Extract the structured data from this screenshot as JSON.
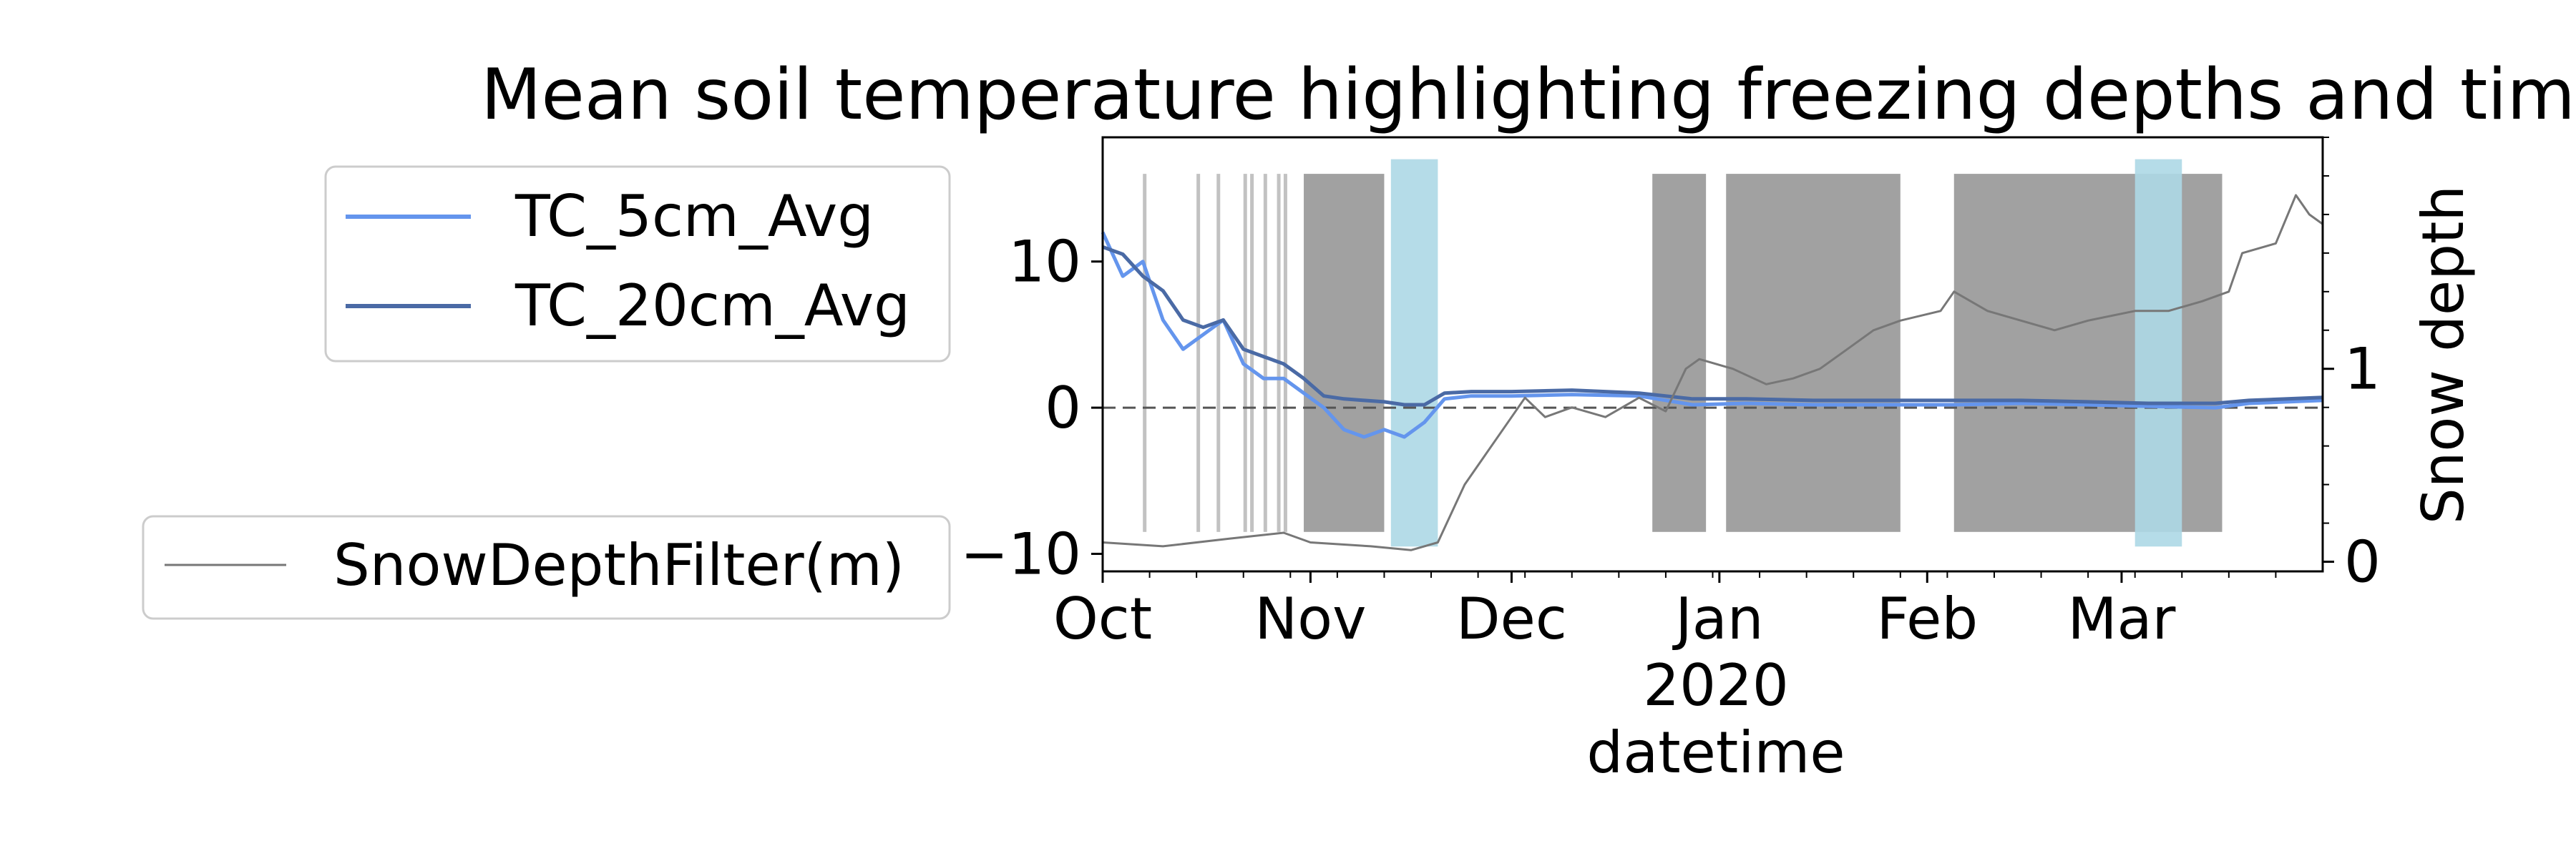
{
  "chart_data": {
    "type": "line",
    "title": "Mean soil temperature highlighting freezing depths and tim",
    "xlabel": "datetime",
    "ylabel_right": "Snow depth",
    "ylabel_left": "",
    "x_range": [
      "2019-10-01",
      "2020-03-31"
    ],
    "x_ticks": [
      {
        "date": "2019-10-01",
        "label": "Oct"
      },
      {
        "date": "2019-11-01",
        "label": "Nov"
      },
      {
        "date": "2019-12-01",
        "label": "Dec"
      },
      {
        "date": "2020-01-01",
        "label": "Jan"
      },
      {
        "date": "2020-02-01",
        "label": "Feb"
      },
      {
        "date": "2020-03-01",
        "label": "Mar"
      }
    ],
    "x_year_label": "2020",
    "y_left": {
      "lim": [
        -11.2,
        18.5
      ],
      "ticks": [
        -10,
        0,
        10
      ],
      "tick_labels": [
        "−10",
        "0",
        "10"
      ]
    },
    "y_right": {
      "lim": [
        -0.05,
        2.2
      ],
      "ticks": [
        0,
        1
      ],
      "tick_labels": [
        "0",
        "1"
      ]
    },
    "zero_line": {
      "value": 0,
      "style": "dashed"
    },
    "freeze_bands": {
      "color": "#999999",
      "y_range": [
        -8.5,
        16
      ],
      "dense_periods": [
        [
          "2019-10-31",
          "2019-11-12"
        ],
        [
          "2019-12-22",
          "2019-12-30"
        ],
        [
          "2020-01-02",
          "2020-01-28"
        ],
        [
          "2020-02-05",
          "2020-03-16"
        ]
      ],
      "sparse_dates": [
        "2019-10-07",
        "2019-10-15",
        "2019-10-18",
        "2019-10-22",
        "2019-10-23",
        "2019-10-25",
        "2019-10-27",
        "2019-10-28"
      ]
    },
    "thaw_bands": {
      "color": "#add8e6",
      "y_range": [
        -9.5,
        17
      ],
      "periods": [
        [
          "2019-11-13",
          "2019-11-20"
        ],
        [
          "2020-03-03",
          "2020-03-10"
        ]
      ]
    },
    "series": [
      {
        "name": "TC_5cm_Avg",
        "axis": "left",
        "color": "#6495ed",
        "points": [
          [
            "2019-10-01",
            12
          ],
          [
            "2019-10-04",
            9
          ],
          [
            "2019-10-07",
            10
          ],
          [
            "2019-10-10",
            6
          ],
          [
            "2019-10-13",
            4
          ],
          [
            "2019-10-16",
            5
          ],
          [
            "2019-10-19",
            6
          ],
          [
            "2019-10-22",
            3
          ],
          [
            "2019-10-25",
            2
          ],
          [
            "2019-10-28",
            2
          ],
          [
            "2019-10-31",
            1
          ],
          [
            "2019-11-03",
            0
          ],
          [
            "2019-11-06",
            -1.5
          ],
          [
            "2019-11-09",
            -2
          ],
          [
            "2019-11-12",
            -1.5
          ],
          [
            "2019-11-15",
            -2
          ],
          [
            "2019-11-18",
            -1
          ],
          [
            "2019-11-21",
            0.6
          ],
          [
            "2019-11-25",
            0.8
          ],
          [
            "2019-12-01",
            0.8
          ],
          [
            "2019-12-10",
            0.9
          ],
          [
            "2019-12-20",
            0.8
          ],
          [
            "2019-12-28",
            0.2
          ],
          [
            "2020-01-05",
            0.3
          ],
          [
            "2020-01-15",
            0.2
          ],
          [
            "2020-01-25",
            0.2
          ],
          [
            "2020-02-05",
            0.2
          ],
          [
            "2020-02-15",
            0.3
          ],
          [
            "2020-02-25",
            0.2
          ],
          [
            "2020-03-05",
            0.1
          ],
          [
            "2020-03-15",
            0.0
          ],
          [
            "2020-03-20",
            0.3
          ],
          [
            "2020-03-31",
            0.5
          ]
        ]
      },
      {
        "name": "TC_20cm_Avg",
        "axis": "left",
        "color": "#4a6aa5",
        "points": [
          [
            "2019-10-01",
            11
          ],
          [
            "2019-10-04",
            10.5
          ],
          [
            "2019-10-07",
            9
          ],
          [
            "2019-10-10",
            8
          ],
          [
            "2019-10-13",
            6
          ],
          [
            "2019-10-16",
            5.5
          ],
          [
            "2019-10-19",
            6
          ],
          [
            "2019-10-22",
            4
          ],
          [
            "2019-10-25",
            3.5
          ],
          [
            "2019-10-28",
            3
          ],
          [
            "2019-10-31",
            2
          ],
          [
            "2019-11-03",
            0.8
          ],
          [
            "2019-11-06",
            0.6
          ],
          [
            "2019-11-09",
            0.5
          ],
          [
            "2019-11-12",
            0.4
          ],
          [
            "2019-11-15",
            0.2
          ],
          [
            "2019-11-18",
            0.2
          ],
          [
            "2019-11-21",
            1.0
          ],
          [
            "2019-11-25",
            1.1
          ],
          [
            "2019-12-01",
            1.1
          ],
          [
            "2019-12-10",
            1.2
          ],
          [
            "2019-12-20",
            1.0
          ],
          [
            "2019-12-28",
            0.6
          ],
          [
            "2020-01-05",
            0.6
          ],
          [
            "2020-01-15",
            0.5
          ],
          [
            "2020-01-25",
            0.5
          ],
          [
            "2020-02-05",
            0.5
          ],
          [
            "2020-02-15",
            0.5
          ],
          [
            "2020-02-25",
            0.4
          ],
          [
            "2020-03-05",
            0.3
          ],
          [
            "2020-03-15",
            0.3
          ],
          [
            "2020-03-20",
            0.5
          ],
          [
            "2020-03-31",
            0.7
          ]
        ]
      },
      {
        "name": "SnowDepthFilter(m)",
        "axis": "right",
        "color": "#777777",
        "points": [
          [
            "2019-10-01",
            0.1
          ],
          [
            "2019-10-10",
            0.08
          ],
          [
            "2019-10-20",
            0.12
          ],
          [
            "2019-10-28",
            0.15
          ],
          [
            "2019-11-01",
            0.1
          ],
          [
            "2019-11-10",
            0.08
          ],
          [
            "2019-11-16",
            0.06
          ],
          [
            "2019-11-20",
            0.1
          ],
          [
            "2019-11-22",
            0.25
          ],
          [
            "2019-11-24",
            0.4
          ],
          [
            "2019-11-27",
            0.55
          ],
          [
            "2019-11-30",
            0.7
          ],
          [
            "2019-12-03",
            0.85
          ],
          [
            "2019-12-06",
            0.75
          ],
          [
            "2019-12-10",
            0.8
          ],
          [
            "2019-12-15",
            0.75
          ],
          [
            "2019-12-20",
            0.85
          ],
          [
            "2019-12-24",
            0.78
          ],
          [
            "2019-12-27",
            1.0
          ],
          [
            "2019-12-29",
            1.05
          ],
          [
            "2020-01-03",
            1.0
          ],
          [
            "2020-01-08",
            0.92
          ],
          [
            "2020-01-12",
            0.95
          ],
          [
            "2020-01-16",
            1.0
          ],
          [
            "2020-01-20",
            1.1
          ],
          [
            "2020-01-24",
            1.2
          ],
          [
            "2020-01-28",
            1.25
          ],
          [
            "2020-02-03",
            1.3
          ],
          [
            "2020-02-05",
            1.4
          ],
          [
            "2020-02-10",
            1.3
          ],
          [
            "2020-02-15",
            1.25
          ],
          [
            "2020-02-20",
            1.2
          ],
          [
            "2020-02-25",
            1.25
          ],
          [
            "2020-03-03",
            1.3
          ],
          [
            "2020-03-08",
            1.3
          ],
          [
            "2020-03-13",
            1.35
          ],
          [
            "2020-03-17",
            1.4
          ],
          [
            "2020-03-19",
            1.6
          ],
          [
            "2020-03-24",
            1.65
          ],
          [
            "2020-03-27",
            1.9
          ],
          [
            "2020-03-29",
            1.8
          ],
          [
            "2020-03-31",
            1.75
          ]
        ]
      }
    ],
    "legend": {
      "primary": {
        "placement": "upper-left outside",
        "entries": [
          "TC_5cm_Avg",
          "TC_20cm_Avg"
        ]
      },
      "secondary": {
        "placement": "lower-left outside",
        "entries": [
          "SnowDepthFilter(m)"
        ]
      }
    },
    "grid": false
  }
}
